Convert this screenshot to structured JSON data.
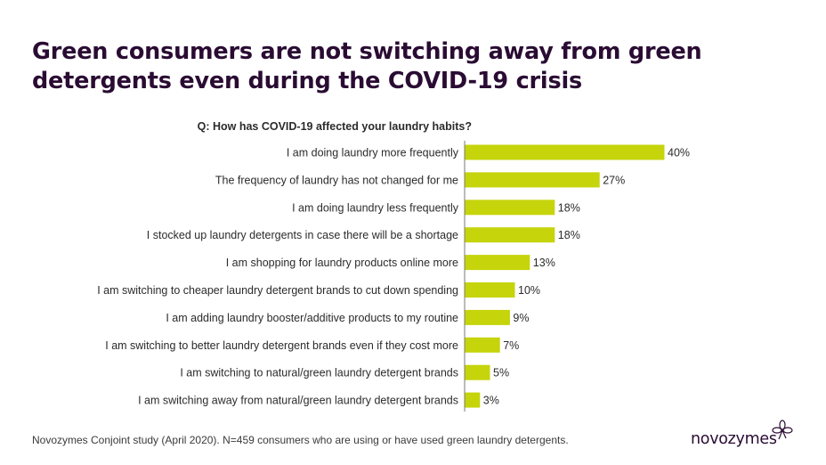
{
  "title": "Green consumers are not switching away from green detergents even during the COVID-19 crisis",
  "question": "Q: How has COVID-19 affected your laundry habits?",
  "footnote": "Novozymes Conjoint study (April 2020). N=459 consumers who are using or have used green laundry detergents.",
  "logo_text": "novozymes",
  "logo_icon": "flower-icon",
  "chart_data": {
    "type": "bar",
    "orientation": "horizontal",
    "categories": [
      "I am doing laundry more frequently",
      "The frequency of laundry has not changed for me",
      "I am doing laundry less frequently",
      "I stocked up laundry detergents in case there will be a shortage",
      "I am shopping for laundry products online more",
      "I am switching to cheaper laundry detergent brands to cut down spending",
      "I am adding laundry booster/additive products to my routine",
      "I am switching to better laundry detergent brands even if they cost more",
      "I am switching to natural/green laundry detergent brands",
      "I am switching away from natural/green laundry detergent brands"
    ],
    "values": [
      40,
      27,
      18,
      18,
      13,
      10,
      9,
      7,
      5,
      3
    ],
    "value_labels": [
      "40%",
      "27%",
      "18%",
      "18%",
      "13%",
      "10%",
      "9%",
      "7%",
      "5%",
      "3%"
    ],
    "bar_color": "#c5d40b",
    "xlim": [
      0,
      40
    ],
    "grid": false
  }
}
